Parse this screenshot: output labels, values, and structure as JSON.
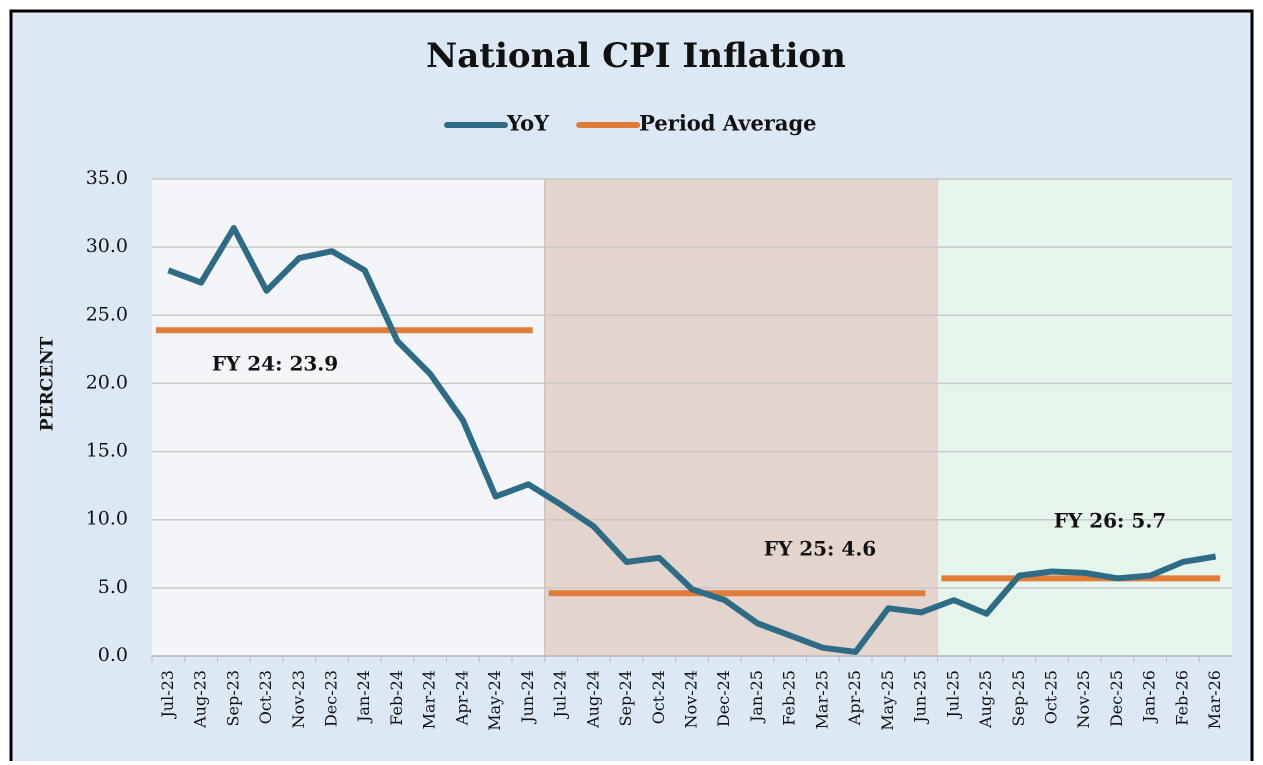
{
  "chart_data": {
    "type": "line",
    "title": "National CPI Inflation",
    "y_label": "PERCENT",
    "categories": [
      "Jul-23",
      "Aug-23",
      "Sep-23",
      "Oct-23",
      "Nov-23",
      "Dec-23",
      "Jan-24",
      "Feb-24",
      "Mar-24",
      "Apr-24",
      "May-24",
      "Jun-24",
      "Jul-24",
      "Aug-24",
      "Sep-24",
      "Oct-24",
      "Nov-24",
      "Dec-24",
      "Jan-25",
      "Feb-25",
      "Mar-25",
      "Apr-25",
      "May-25",
      "Jun-25",
      "Jul-25",
      "Aug-25",
      "Sep-25",
      "Oct-25",
      "Nov-25",
      "Dec-25",
      "Jan-26",
      "Feb-26",
      "Mar-26"
    ],
    "series": [
      {
        "name": "YoY",
        "color": "#2e6b85",
        "values": [
          28.3,
          27.4,
          31.4,
          26.8,
          29.2,
          29.7,
          28.3,
          23.1,
          20.7,
          17.3,
          11.7,
          12.6,
          11.1,
          9.5,
          6.9,
          7.2,
          4.9,
          4.1,
          2.4,
          1.5,
          0.6,
          0.3,
          3.5,
          3.2,
          4.1,
          3.1,
          5.9,
          6.2,
          6.1,
          5.7,
          5.9,
          6.9,
          7.3
        ]
      },
      {
        "name": "Period Average",
        "color": "#e07b39",
        "values": [
          23.9,
          23.9,
          23.9,
          23.9,
          23.9,
          23.9,
          23.9,
          23.9,
          23.9,
          23.9,
          23.9,
          23.9,
          4.6,
          4.6,
          4.6,
          4.6,
          4.6,
          4.6,
          4.6,
          4.6,
          4.6,
          4.6,
          4.6,
          4.6,
          5.7,
          5.7,
          5.7,
          5.7,
          5.7,
          5.7,
          5.7,
          5.7,
          5.7
        ]
      }
    ],
    "annotations": [
      "FY 24: 23.9",
      "FY 25: 4.6",
      "FY 26: 5.7"
    ],
    "shading": [
      "#f3f5f8",
      "#e3d4cd",
      "#e6f5ec"
    ],
    "ylim": [
      0,
      35
    ],
    "yticks": [
      {
        "value": 0,
        "label": "0.0"
      },
      {
        "value": 5,
        "label": "5.0"
      },
      {
        "value": 10,
        "label": "10.0"
      },
      {
        "value": 15,
        "label": "15.0"
      },
      {
        "value": 20,
        "label": "20.0"
      },
      {
        "value": 25,
        "label": "25.0"
      },
      {
        "value": 30,
        "label": "30.0"
      },
      {
        "value": 35,
        "label": "35.0"
      }
    ],
    "grid": true,
    "legend": "top"
  }
}
